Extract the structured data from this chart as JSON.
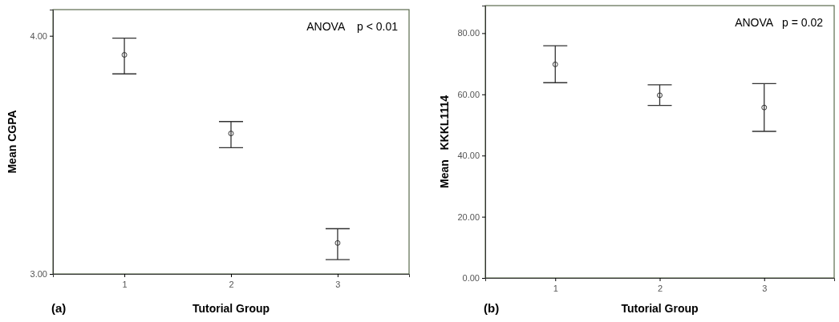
{
  "chart_data": [
    {
      "type": "scatter",
      "xlabel": "Tutorial Group",
      "ylabel": "Mean CGPA",
      "categories": [
        "1",
        "2",
        "3"
      ],
      "series": [
        {
          "color": "#333333",
          "values": [
            3.92,
            3.59,
            3.13
          ],
          "errors": [
            [
              3.84,
              3.99
            ],
            [
              3.53,
              3.64
            ],
            [
              3.06,
              3.19
            ]
          ]
        }
      ],
      "ylim": [
        3.0,
        4.11
      ],
      "yticks": [
        {
          "value": 3,
          "label": "3.00"
        },
        {
          "value": 4,
          "label": "4.00"
        }
      ],
      "marker": "circle",
      "annotations": [
        "ANOVA    p < 0.01",
        "(a)"
      ]
    },
    {
      "type": "scatter",
      "xlabel": "Tutorial Group",
      "ylabel": "Mean   KKKL1114",
      "categories": [
        "1",
        "2",
        "3"
      ],
      "series": [
        {
          "color": "#333333",
          "values": [
            69.8,
            59.7,
            55.7
          ],
          "errors": [
            [
              63.8,
              75.9
            ],
            [
              56.4,
              63.1
            ],
            [
              47.9,
              63.5
            ]
          ]
        }
      ],
      "ylim": [
        0,
        89
      ],
      "yticks": [
        {
          "value": 0,
          "label": "0.00"
        },
        {
          "value": 20,
          "label": "20.00"
        },
        {
          "value": 40,
          "label": "40.00"
        },
        {
          "value": 60,
          "label": "60.00"
        },
        {
          "value": 80,
          "label": "80.00"
        }
      ],
      "marker": "circle",
      "annotations": [
        "ANOVA   p = 0.02",
        "(b)"
      ]
    }
  ]
}
